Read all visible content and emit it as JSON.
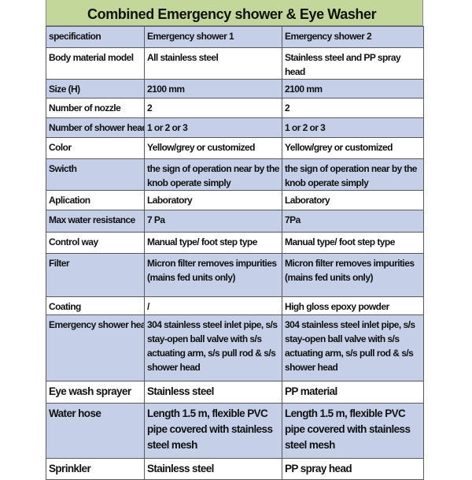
{
  "title": "Combined Emergency shower & Eye Washer",
  "colors": {
    "title_bg": "#c4d79b",
    "band_blue": "#c5d0e8",
    "band_white": "#ffffff"
  },
  "rows": [
    [
      "specification",
      "Emergency shower 1",
      "Emergency shower 2"
    ],
    [
      "Body material model",
      "All stainless steel",
      "Stainless steel and PP spray head"
    ],
    [
      "Size (H)",
      "2100 mm",
      "2100 mm"
    ],
    [
      "Number of nozzle",
      "2",
      "2"
    ],
    [
      "Number of shower head",
      "1 or 2 or 3",
      "1 or 2 or 3"
    ],
    [
      "Color",
      "Yellow/grey or customized",
      "Yellow/grey or customized"
    ],
    [
      "Swicth",
      "the sign of operation near by the knob operate simply",
      "the sign of operation near by the knob operate simply"
    ],
    [
      "Aplication",
      "Laboratory",
      "Laboratory"
    ],
    [
      "Max water resistance",
      "7 Pa",
      "7Pa"
    ],
    [
      "Control way",
      "Manual type/ foot step type",
      "Manual type/ foot step type"
    ],
    [
      "Filter",
      "Micron filter removes impurities (mains fed units only)",
      "Micron filter removes impurities (mains fed units only)"
    ],
    [
      "Coating",
      "/",
      "High gloss epoxy powder"
    ],
    [
      "Emergency shower head",
      "304 stainless steel inlet pipe, s/s stay-open ball valve with s/s actuating arm, s/s pull rod & s/s shower head",
      "304 stainless steel inlet pipe, s/s stay-open ball valve with s/s actuating arm, s/s pull rod & s/s shower head"
    ],
    [
      "Eye wash sprayer",
      "Stainless steel",
      "PP material"
    ],
    [
      "Water hose",
      "Length 1.5 m, flexible PVC pipe covered with stainless steel mesh",
      "Length 1.5 m, flexible PVC pipe covered with stainless steel mesh"
    ],
    [
      "Sprinkler",
      "Stainless steel",
      "PP spray head"
    ]
  ]
}
